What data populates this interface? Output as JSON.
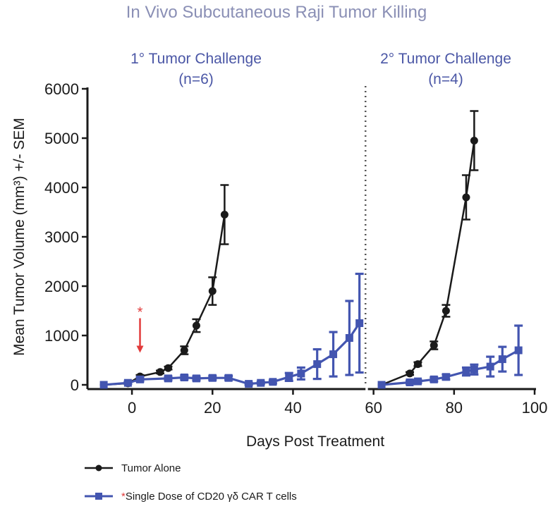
{
  "chart_data": {
    "type": "line",
    "title": "In Vivo Subcutaneous Raji Tumor Killing",
    "panel_labels": [
      {
        "line1": "1° Tumor Challenge",
        "line2": "(n=6)"
      },
      {
        "line1": "2° Tumor Challenge",
        "line2": "(n=4)"
      }
    ],
    "xlabel": "Days Post Treatment",
    "ylabel": "Mean Tumor Volume (mm³) +/- SEM",
    "xlim": [
      -10,
      100
    ],
    "ylim": [
      0,
      6000
    ],
    "x_ticks": [
      0,
      20,
      40,
      60,
      80,
      100
    ],
    "y_ticks": [
      0,
      1000,
      2000,
      3000,
      4000,
      5000,
      6000
    ],
    "divider_x": 58,
    "treatment_marker": {
      "x": 2,
      "y_top": 1350,
      "y_bottom": 650,
      "symbol": "*"
    },
    "series": [
      {
        "name": "Tumor Alone",
        "marker": "circle",
        "color": "#1a1a1a",
        "segments": [
          [
            {
              "x": -7,
              "y": 0,
              "err": 0
            },
            {
              "x": -1,
              "y": 30,
              "err": 0
            },
            {
              "x": 2,
              "y": 170,
              "err": 30
            },
            {
              "x": 7,
              "y": 260,
              "err": 30
            },
            {
              "x": 9,
              "y": 340,
              "err": 30
            },
            {
              "x": 13,
              "y": 700,
              "err": 80
            },
            {
              "x": 16,
              "y": 1200,
              "err": 130
            },
            {
              "x": 20,
              "y": 1900,
              "err": 280
            },
            {
              "x": 23,
              "y": 3450,
              "err": 600
            }
          ],
          [
            {
              "x": 62,
              "y": 0,
              "err": 0
            },
            {
              "x": 69,
              "y": 230,
              "err": 30
            },
            {
              "x": 71,
              "y": 420,
              "err": 40
            },
            {
              "x": 75,
              "y": 800,
              "err": 80
            },
            {
              "x": 78,
              "y": 1500,
              "err": 120
            },
            {
              "x": 83,
              "y": 3800,
              "err": 450
            },
            {
              "x": 85,
              "y": 4950,
              "err": 600
            }
          ]
        ]
      },
      {
        "name": "Single Dose of CD20 γδ CAR T cells",
        "name_prefix": "*",
        "marker": "square",
        "color": "#4355b0",
        "segments": [
          [
            {
              "x": -7,
              "y": 0,
              "err": 0
            },
            {
              "x": -1,
              "y": 40,
              "err": 20
            },
            {
              "x": 2,
              "y": 110,
              "err": 40
            },
            {
              "x": 9,
              "y": 130,
              "err": 40
            },
            {
              "x": 13,
              "y": 150,
              "err": 40
            },
            {
              "x": 16,
              "y": 130,
              "err": 40
            },
            {
              "x": 20,
              "y": 140,
              "err": 40
            },
            {
              "x": 24,
              "y": 140,
              "err": 40
            },
            {
              "x": 29,
              "y": 20,
              "err": 20
            },
            {
              "x": 32,
              "y": 40,
              "err": 20
            },
            {
              "x": 35,
              "y": 60,
              "err": 30
            },
            {
              "x": 39,
              "y": 160,
              "err": 80
            },
            {
              "x": 42,
              "y": 230,
              "err": 120
            },
            {
              "x": 46,
              "y": 420,
              "err": 300
            },
            {
              "x": 50,
              "y": 620,
              "err": 450
            },
            {
              "x": 54,
              "y": 950,
              "err": 750
            },
            {
              "x": 56.5,
              "y": 1250,
              "err": 1000
            }
          ],
          [
            {
              "x": 62,
              "y": 0,
              "err": 0
            },
            {
              "x": 69,
              "y": 50,
              "err": 30
            },
            {
              "x": 71,
              "y": 70,
              "err": 30
            },
            {
              "x": 75,
              "y": 110,
              "err": 40
            },
            {
              "x": 78,
              "y": 160,
              "err": 50
            },
            {
              "x": 83,
              "y": 270,
              "err": 80
            },
            {
              "x": 85,
              "y": 310,
              "err": 100
            },
            {
              "x": 89,
              "y": 370,
              "err": 200
            },
            {
              "x": 92,
              "y": 520,
              "err": 250
            },
            {
              "x": 96,
              "y": 700,
              "err": 500
            }
          ]
        ]
      }
    ]
  }
}
